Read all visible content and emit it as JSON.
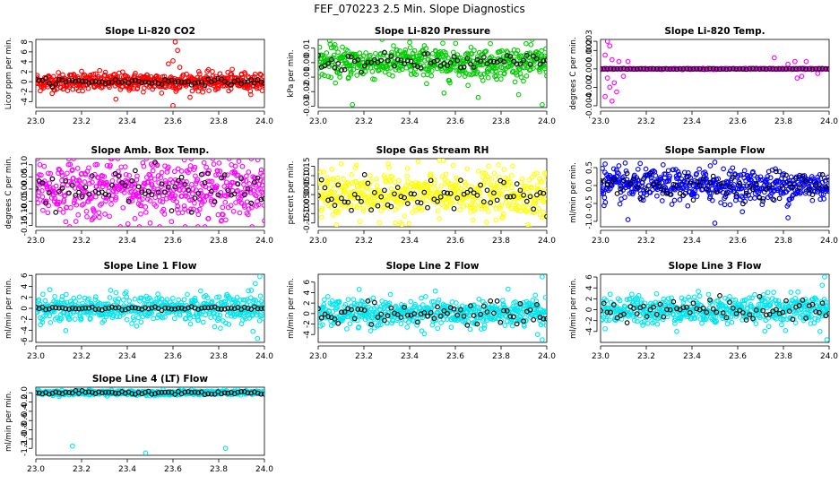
{
  "figure_title": "FEF_070223  2.5 Min. Slope Diagnostics",
  "colors": {
    "co2": "#ff0000",
    "pressure": "#00cc00",
    "magenta": "#ff00ff",
    "rh": "#ffff00",
    "sample_flow": "#0000ff",
    "line_flow": "#00e5ee",
    "overlay": "#000000"
  },
  "chart_data": [
    {
      "type": "scatter",
      "title": "Slope Li-820 CO2",
      "ylabel": "Licor ppm per min.",
      "xlim": [
        23.0,
        24.0
      ],
      "ylim": [
        -5.2,
        8.5
      ],
      "xticks": [
        23.0,
        23.2,
        23.4,
        23.6,
        23.8,
        24.0
      ],
      "xtick_labels": [
        "23.0",
        "23.2",
        "23.4",
        "23.6",
        "23.8",
        "24.0"
      ],
      "yticks": [
        -4,
        -2,
        0,
        2,
        4,
        6,
        8
      ],
      "ytick_labels": [
        "-4",
        "-2",
        "0",
        "2",
        "4",
        "6",
        "8"
      ],
      "color_key": "co2",
      "spread": 0.9,
      "overlay_spread": 0.3,
      "outliers": [
        [
          23.61,
          8.0
        ],
        [
          23.62,
          6.3
        ],
        [
          23.6,
          4.2
        ],
        [
          23.58,
          3.6
        ],
        [
          23.63,
          2.9
        ],
        [
          23.6,
          -4.8
        ],
        [
          23.35,
          -3.5
        ],
        [
          23.2,
          2.1
        ],
        [
          23.55,
          -2.3
        ],
        [
          23.9,
          1.4
        ]
      ]
    },
    {
      "type": "scatter",
      "title": "Slope Li-820 Pressure",
      "ylabel": "kPa per min.",
      "xlim": [
        23.0,
        24.0
      ],
      "ylim": [
        -0.031,
        0.016
      ],
      "xticks": [
        23.0,
        23.2,
        23.4,
        23.6,
        23.8,
        24.0
      ],
      "xtick_labels": [
        "23.0",
        "23.2",
        "23.4",
        "23.6",
        "23.8",
        "24.0"
      ],
      "yticks": [
        -0.03,
        -0.02,
        -0.01,
        0.0,
        0.01
      ],
      "ytick_labels": [
        "-0.03",
        "-0.02",
        "-0.01",
        "0.00",
        "0.01"
      ],
      "color_key": "pressure",
      "spread": 0.0055,
      "overlay_spread": 0.003,
      "outliers": [
        [
          23.15,
          -0.029
        ],
        [
          23.98,
          -0.029
        ],
        [
          23.4,
          0.014
        ],
        [
          23.7,
          -0.024
        ],
        [
          23.05,
          0.015
        ],
        [
          23.55,
          -0.021
        ]
      ]
    },
    {
      "type": "scatter",
      "title": "Slope Li-820 Temp.",
      "ylabel": "degrees C per min.",
      "xlim": [
        23.0,
        24.0
      ],
      "ylim": [
        -0.0042,
        0.0032
      ],
      "xticks": [
        23.0,
        23.2,
        23.4,
        23.6,
        23.8,
        24.0
      ],
      "xtick_labels": [
        "23.0",
        "23.2",
        "23.4",
        "23.6",
        "23.8",
        "24.0"
      ],
      "yticks": [
        -0.004,
        -0.002,
        0.0,
        0.002,
        0.003
      ],
      "ytick_labels": [
        "-0.004",
        "-0.002",
        "0.000",
        "0.002",
        "0.003"
      ],
      "color_key": "magenta",
      "spread": 3e-05,
      "overlay_spread": 2e-05,
      "outliers": [
        [
          23.03,
          0.003
        ],
        [
          23.04,
          0.0025
        ],
        [
          23.02,
          0.0015
        ],
        [
          23.05,
          0.001
        ],
        [
          23.03,
          -0.001
        ],
        [
          23.06,
          -0.0015
        ],
        [
          23.02,
          -0.003
        ],
        [
          23.05,
          -0.0035
        ],
        [
          23.08,
          0.0008
        ],
        [
          23.1,
          -0.0008
        ],
        [
          23.12,
          0.0008
        ],
        [
          23.04,
          -0.002
        ],
        [
          23.07,
          -0.0025
        ],
        [
          23.85,
          0.0008
        ],
        [
          23.88,
          -0.0008
        ],
        [
          23.9,
          0.0008
        ],
        [
          23.82,
          0.0005
        ],
        [
          23.95,
          -0.0005
        ],
        [
          23.76,
          0.0012
        ],
        [
          23.86,
          -0.001
        ]
      ]
    },
    {
      "type": "scatter",
      "title": "Slope Amb. Box Temp.",
      "ylabel": "degrees C per min.",
      "xlim": [
        23.0,
        24.0
      ],
      "ylim": [
        -0.155,
        0.125
      ],
      "xticks": [
        23.0,
        23.2,
        23.4,
        23.6,
        23.8,
        24.0
      ],
      "xtick_labels": [
        "23.0",
        "23.2",
        "23.4",
        "23.6",
        "23.8",
        "24.0"
      ],
      "yticks": [
        -0.15,
        -0.1,
        -0.05,
        0.0,
        0.05,
        0.1
      ],
      "ytick_labels": [
        "-0.15",
        "-0.10",
        "-0.05",
        "0.00",
        "0.05",
        "0.10"
      ],
      "color_key": "magenta",
      "spread": 0.06,
      "overlay_spread": 0.04,
      "outliers": [
        [
          23.65,
          0.12
        ],
        [
          23.5,
          -0.14
        ],
        [
          23.25,
          -0.12
        ]
      ]
    },
    {
      "type": "scatter",
      "title": "Slope Gas Stream RH",
      "ylabel": "percent per min.",
      "xlim": [
        23.0,
        24.0
      ],
      "ylim": [
        -0.17,
        0.19
      ],
      "xticks": [
        23.0,
        23.2,
        23.4,
        23.6,
        23.8,
        24.0
      ],
      "xtick_labels": [
        "23.0",
        "23.2",
        "23.4",
        "23.6",
        "23.8",
        "24.0"
      ],
      "yticks": [
        -0.15,
        -0.1,
        -0.05,
        0.0,
        0.05,
        0.1,
        0.15
      ],
      "ytick_labels": [
        "-0.15",
        "-0.10",
        "-0.05",
        "0.00",
        "0.05",
        "0.10",
        "0.15"
      ],
      "color_key": "rh",
      "spread": 0.06,
      "overlay_spread": 0.05,
      "outliers": [
        [
          23.53,
          0.18
        ],
        [
          23.08,
          -0.16
        ],
        [
          23.85,
          0.15
        ],
        [
          23.98,
          -0.12
        ]
      ]
    },
    {
      "type": "scatter",
      "title": "Slope Sample Flow",
      "ylabel": "ml/min per min.",
      "xlim": [
        23.0,
        24.0
      ],
      "ylim": [
        -1.15,
        0.75
      ],
      "xticks": [
        23.0,
        23.2,
        23.4,
        23.6,
        23.8,
        24.0
      ],
      "xtick_labels": [
        "23.0",
        "23.2",
        "23.4",
        "23.6",
        "23.8",
        "24.0"
      ],
      "yticks": [
        -1.0,
        -0.5,
        0.0,
        0.5
      ],
      "ytick_labels": [
        "-1.0",
        "-0.5",
        "0.0",
        "0.5"
      ],
      "color_key": "sample_flow",
      "spread": 0.22,
      "overlay_spread": 0.2,
      "outliers": [
        [
          23.12,
          -0.95
        ],
        [
          23.5,
          -1.05
        ],
        [
          23.82,
          -0.9
        ],
        [
          23.08,
          0.55
        ],
        [
          23.5,
          0.65
        ],
        [
          23.02,
          0.6
        ],
        [
          23.48,
          0.55
        ]
      ]
    },
    {
      "type": "scatter",
      "title": "Slope Line 1 Flow",
      "ylabel": "ml/min per min.",
      "xlim": [
        23.0,
        24.0
      ],
      "ylim": [
        -6.2,
        6.2
      ],
      "xticks": [
        23.0,
        23.2,
        23.4,
        23.6,
        23.8,
        24.0
      ],
      "xtick_labels": [
        "23.0",
        "23.2",
        "23.4",
        "23.6",
        "23.8",
        "24.0"
      ],
      "yticks": [
        -6,
        -4,
        -2,
        0,
        2,
        4,
        6
      ],
      "ytick_labels": [
        "-6",
        "-4",
        "-2",
        "0",
        "2",
        "4",
        "6"
      ],
      "color_key": "line_flow",
      "spread": 1.2,
      "overlay_spread": 0.15,
      "outliers": [
        [
          23.98,
          5.8
        ],
        [
          23.96,
          4.5
        ],
        [
          23.97,
          -5.5
        ],
        [
          23.95,
          -4.2
        ],
        [
          23.93,
          3.2
        ],
        [
          23.02,
          -3.0
        ],
        [
          23.9,
          -2.8
        ]
      ]
    },
    {
      "type": "scatter",
      "title": "Slope Line 2 Flow",
      "ylabel": "ml/min per min.",
      "xlim": [
        23.0,
        24.0
      ],
      "ylim": [
        -5.5,
        7.5
      ],
      "xticks": [
        23.0,
        23.2,
        23.4,
        23.6,
        23.8,
        24.0
      ],
      "xtick_labels": [
        "23.0",
        "23.2",
        "23.4",
        "23.6",
        "23.8",
        "24.0"
      ],
      "yticks": [
        -4,
        -2,
        0,
        2,
        4,
        6
      ],
      "ytick_labels": [
        "-4",
        "-2",
        "0",
        "2",
        "4",
        "6"
      ],
      "color_key": "line_flow",
      "spread": 1.3,
      "overlay_spread": 1.0,
      "outliers": [
        [
          23.98,
          7.0
        ],
        [
          23.98,
          -5.0
        ],
        [
          23.96,
          -4.0
        ],
        [
          23.95,
          3.5
        ]
      ]
    },
    {
      "type": "scatter",
      "title": "Slope Line 3 Flow",
      "ylabel": "ml/min per min.",
      "xlim": [
        23.0,
        24.0
      ],
      "ylim": [
        -6.0,
        6.5
      ],
      "xticks": [
        23.0,
        23.2,
        23.4,
        23.6,
        23.8,
        24.0
      ],
      "xtick_labels": [
        "23.0",
        "23.2",
        "23.4",
        "23.6",
        "23.8",
        "24.0"
      ],
      "yticks": [
        -4,
        -2,
        0,
        2,
        4,
        6
      ],
      "ytick_labels": [
        "-4",
        "-2",
        "0",
        "2",
        "4",
        "6"
      ],
      "color_key": "line_flow",
      "spread": 1.3,
      "overlay_spread": 1.0,
      "outliers": [
        [
          23.98,
          6.0
        ],
        [
          23.99,
          -5.5
        ],
        [
          23.96,
          -4.0
        ],
        [
          23.02,
          -3.5
        ],
        [
          23.97,
          4.5
        ]
      ]
    },
    {
      "type": "scatter",
      "title": "Slope Line 4 (LT) Flow",
      "ylabel": "ml/min per min.",
      "xlim": [
        23.0,
        24.0
      ],
      "ylim": [
        -1.35,
        0.12
      ],
      "xticks": [
        23.0,
        23.2,
        23.4,
        23.6,
        23.8,
        24.0
      ],
      "xtick_labels": [
        "23.0",
        "23.2",
        "23.4",
        "23.6",
        "23.8",
        "24.0"
      ],
      "yticks": [
        -1.2,
        -1.0,
        -0.8,
        -0.6,
        -0.4,
        -0.2,
        0.0
      ],
      "ytick_labels": [
        "-1.2",
        "-1.0",
        "-0.8",
        "-0.6",
        "-0.4",
        "-0.2",
        "0.0"
      ],
      "color_key": "line_flow",
      "spread": 0.025,
      "overlay_spread": 0.02,
      "outliers": [
        [
          23.16,
          -1.15
        ],
        [
          23.48,
          -1.3
        ],
        [
          23.83,
          -1.2
        ]
      ]
    }
  ]
}
